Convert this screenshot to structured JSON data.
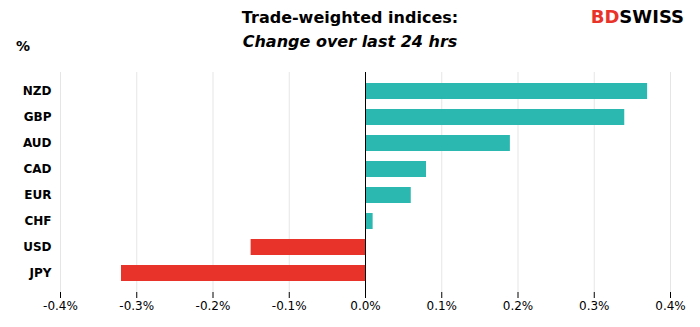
{
  "chart_data": {
    "type": "bar",
    "orientation": "horizontal",
    "title": "Trade-weighted indices:",
    "subtitle": "Change over last 24 hrs",
    "ylabel": "%",
    "annotations": [
      {
        "text": "BD",
        "color": "#e8332a"
      },
      {
        "text": "SWISS",
        "color": "#000000"
      }
    ],
    "categories": [
      "NZD",
      "GBP",
      "AUD",
      "CAD",
      "EUR",
      "CHF",
      "USD",
      "JPY"
    ],
    "values": [
      0.37,
      0.34,
      0.19,
      0.08,
      0.06,
      0.01,
      -0.15,
      -0.32
    ],
    "colors": [
      "#2ab8b0",
      "#2ab8b0",
      "#2ab8b0",
      "#2ab8b0",
      "#2ab8b0",
      "#2ab8b0",
      "#e8332a",
      "#e8332a"
    ],
    "xlim": [
      -0.4,
      0.4
    ],
    "xticks": [
      {
        "value": -0.4,
        "label": "-0.4%"
      },
      {
        "value": -0.3,
        "label": "-0.3%"
      },
      {
        "value": -0.2,
        "label": "-0.2%"
      },
      {
        "value": -0.1,
        "label": "-0.1%"
      },
      {
        "value": 0.0,
        "label": "0.0%"
      },
      {
        "value": 0.1,
        "label": "0.1%"
      },
      {
        "value": 0.2,
        "label": "0.2%"
      },
      {
        "value": 0.3,
        "label": "0.3%"
      },
      {
        "value": 0.4,
        "label": "0.4%"
      }
    ],
    "grid": true
  }
}
